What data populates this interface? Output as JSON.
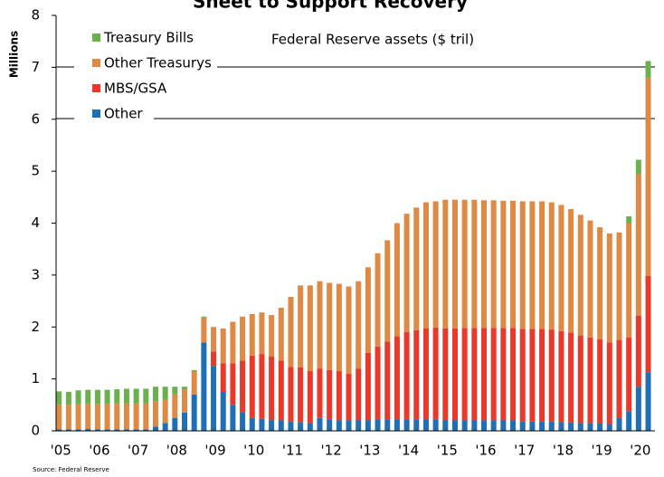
{
  "chart_data": {
    "type": "stacked_bar",
    "title": "Sheet to Support Recovery",
    "annotation": "Federal Reserve assets ($ tril)",
    "y_label": "Millions",
    "source": "Source: Federal Reserve",
    "categories": [
      "'05",
      null,
      null,
      null,
      "'06",
      null,
      null,
      null,
      "'07",
      null,
      null,
      null,
      "'08",
      null,
      null,
      null,
      "'09",
      null,
      null,
      null,
      "'10",
      null,
      null,
      null,
      "'11",
      null,
      null,
      null,
      "'12",
      null,
      null,
      null,
      "'13",
      null,
      null,
      null,
      "'14",
      null,
      null,
      null,
      "'15",
      null,
      null,
      null,
      "'16",
      null,
      null,
      null,
      "'17",
      null,
      null,
      null,
      "'18",
      null,
      null,
      null,
      "'19",
      null,
      null,
      null,
      "'20",
      null
    ],
    "series": [
      {
        "name": "Other",
        "color": "#1f6fb4",
        "values": [
          0.03,
          0.03,
          0.03,
          0.04,
          0.03,
          0.03,
          0.03,
          0.03,
          0.03,
          0.03,
          0.08,
          0.15,
          0.25,
          0.35,
          0.7,
          1.7,
          1.25,
          0.75,
          0.5,
          0.35,
          0.25,
          0.23,
          0.2,
          0.2,
          0.18,
          0.17,
          0.15,
          0.25,
          0.22,
          0.2,
          0.2,
          0.2,
          0.2,
          0.22,
          0.22,
          0.22,
          0.22,
          0.22,
          0.22,
          0.22,
          0.2,
          0.2,
          0.2,
          0.2,
          0.2,
          0.2,
          0.2,
          0.2,
          0.18,
          0.18,
          0.18,
          0.18,
          0.17,
          0.16,
          0.15,
          0.15,
          0.14,
          0.13,
          0.25,
          0.38,
          0.85,
          1.13
        ]
      },
      {
        "name": "MBS/GSA",
        "color": "#e8392b",
        "values": [
          0,
          0,
          0,
          0,
          0,
          0,
          0,
          0,
          0,
          0,
          0,
          0,
          0,
          0,
          0,
          0,
          0.28,
          0.55,
          0.8,
          1.0,
          1.2,
          1.25,
          1.23,
          1.15,
          1.05,
          1.05,
          1.0,
          0.95,
          0.95,
          0.95,
          0.9,
          1.0,
          1.3,
          1.4,
          1.5,
          1.6,
          1.68,
          1.72,
          1.75,
          1.77,
          1.77,
          1.77,
          1.78,
          1.78,
          1.78,
          1.78,
          1.78,
          1.78,
          1.78,
          1.78,
          1.78,
          1.77,
          1.75,
          1.73,
          1.68,
          1.65,
          1.62,
          1.57,
          1.5,
          1.42,
          1.37,
          1.85
        ]
      },
      {
        "name": "Other Treasurys",
        "color": "#de8a45",
        "values": [
          0.47,
          0.47,
          0.48,
          0.48,
          0.49,
          0.49,
          0.5,
          0.5,
          0.5,
          0.5,
          0.49,
          0.45,
          0.45,
          0.45,
          0.45,
          0.48,
          0.47,
          0.67,
          0.8,
          0.85,
          0.8,
          0.8,
          0.8,
          1.02,
          1.35,
          1.58,
          1.65,
          1.68,
          1.68,
          1.68,
          1.68,
          1.68,
          1.65,
          1.8,
          1.95,
          2.18,
          2.28,
          2.36,
          2.43,
          2.43,
          2.48,
          2.48,
          2.47,
          2.47,
          2.46,
          2.46,
          2.45,
          2.45,
          2.46,
          2.46,
          2.46,
          2.45,
          2.43,
          2.38,
          2.33,
          2.25,
          2.16,
          2.1,
          2.07,
          2.2,
          2.72,
          3.82
        ]
      },
      {
        "name": "Treasury Bills",
        "color": "#6ab04c",
        "values": [
          0.26,
          0.25,
          0.27,
          0.27,
          0.27,
          0.27,
          0.27,
          0.28,
          0.28,
          0.28,
          0.28,
          0.25,
          0.15,
          0.05,
          0.02,
          0.02,
          0,
          0,
          0,
          0,
          0,
          0,
          0,
          0,
          0,
          0,
          0,
          0,
          0,
          0,
          0,
          0,
          0,
          0,
          0,
          0,
          0,
          0,
          0,
          0,
          0,
          0,
          0,
          0,
          0,
          0,
          0,
          0,
          0,
          0,
          0,
          0,
          0,
          0,
          0,
          0,
          0,
          0,
          0,
          0.13,
          0.28,
          0.32
        ]
      }
    ],
    "ylim": [
      0,
      8
    ],
    "yticks": [
      0,
      1,
      2,
      3,
      4,
      5,
      6,
      7,
      8
    ]
  }
}
